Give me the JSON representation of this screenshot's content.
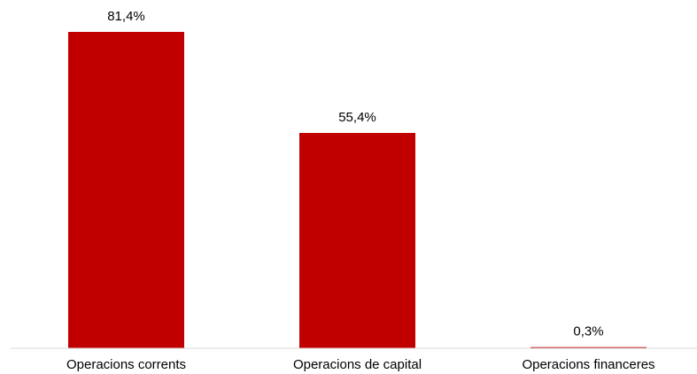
{
  "chart_data": {
    "type": "bar",
    "categories": [
      "Operacions corrents",
      "Operacions de capital",
      "Operacions financeres"
    ],
    "values": [
      81.4,
      55.4,
      0.3
    ],
    "value_labels": [
      "81,4%",
      "55,4%",
      "0,3%"
    ],
    "title": "",
    "xlabel": "",
    "ylabel": "",
    "ylim": [
      0,
      81.4
    ],
    "grid": false,
    "legend": "none",
    "colors": {
      "bar": "#c00000",
      "axis": "#d9d9d9",
      "text": "#000000"
    }
  }
}
